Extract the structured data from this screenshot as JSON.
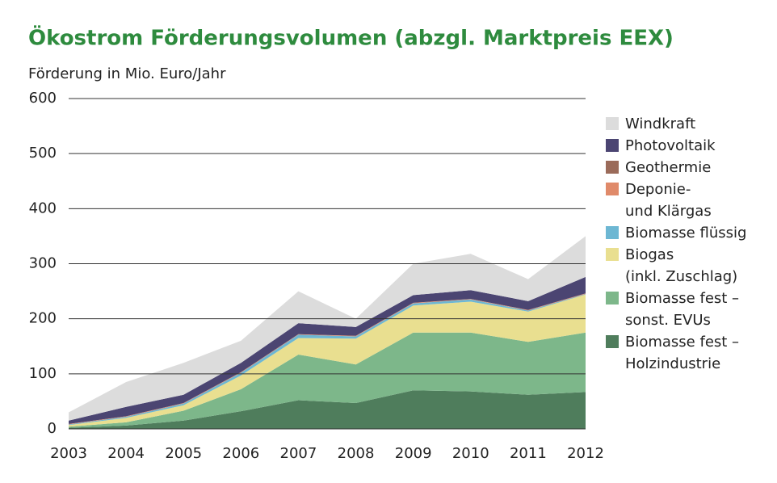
{
  "chart_data": {
    "type": "stacked_area",
    "title": "Ökostrom Förderungsvolumen (abzgl. Marktpreis EEX)",
    "y_label": "Förderung in Mio. Euro/Jahr",
    "categories": [
      "2003",
      "2004",
      "2005",
      "2006",
      "2007",
      "2008",
      "2009",
      "2010",
      "2011",
      "2012"
    ],
    "ylim": [
      0,
      600
    ],
    "yticks": [
      0,
      100,
      200,
      300,
      400,
      500,
      600
    ],
    "grid": true,
    "series": [
      {
        "name": "Biomasse fest –\nHolzindustrie",
        "color": "#4f7d5c",
        "values": [
          2,
          6,
          15,
          32,
          52,
          47,
          70,
          68,
          62,
          67
        ]
      },
      {
        "name": "Biomasse fest –\nsonst. EVUs",
        "color": "#7db78a",
        "values": [
          2,
          6,
          18,
          40,
          83,
          70,
          105,
          107,
          96,
          108
        ]
      },
      {
        "name": "Biogas\n(inkl. Zuschlag)",
        "color": "#e9df90",
        "values": [
          3,
          8,
          10,
          25,
          30,
          47,
          49,
          56,
          55,
          69
        ]
      },
      {
        "name": "Biomasse flüssig",
        "color": "#6db7d3",
        "values": [
          1,
          2,
          3,
          5,
          6,
          4,
          4,
          4,
          2,
          1
        ]
      },
      {
        "name": "Deponie-\nund Klärgas",
        "color": "#e08a6a",
        "values": [
          1,
          1,
          1,
          1,
          1,
          1,
          1,
          1,
          1,
          1
        ]
      },
      {
        "name": "Geothermie",
        "color": "#9b6b5a",
        "values": [
          0,
          0,
          0,
          0,
          0,
          0,
          0,
          0,
          0,
          0
        ]
      },
      {
        "name": "Photovoltaik",
        "color": "#4b4572",
        "values": [
          6,
          17,
          15,
          17,
          20,
          16,
          14,
          16,
          16,
          30
        ]
      },
      {
        "name": "Windkraft",
        "color": "#dcdcdc",
        "values": [
          15,
          45,
          58,
          40,
          58,
          15,
          57,
          66,
          40,
          74
        ]
      }
    ]
  }
}
